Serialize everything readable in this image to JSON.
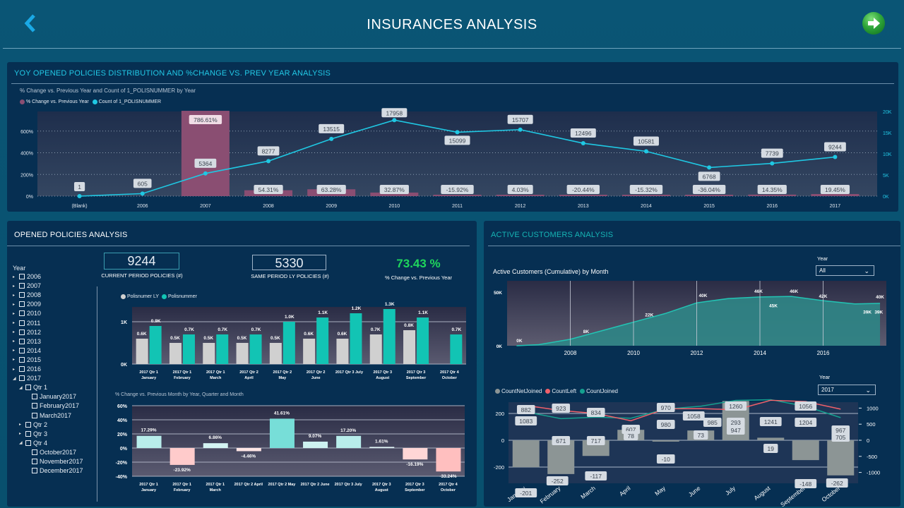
{
  "header": {
    "title": "INSURANCES  ANALYSIS",
    "back_icon": "chevron-left-icon",
    "next_icon": "arrow-right-circle-icon"
  },
  "colors": {
    "accent": "#22c9e6",
    "bar_pct": "#8a4e72",
    "line_count": "#1fc8e3",
    "teal": "#12c4b4",
    "ly_gray": "#d0d0d0",
    "green": "#1fd65c",
    "net_gray": "#8c9595",
    "left_red": "#f0606a",
    "joined_teal": "#14a08f"
  },
  "yoy_panel": {
    "title": "YOY OPENED POLICIES  DISTRIBUTION AND %CHANGE VS. PREV YEAR ANALYSIS",
    "subtitle": "% Change vs. Previous Year and Count of 1_POLISNUMMER by Year",
    "legend": [
      "% Change vs. Previous Year",
      "Count of 1_POLISNUMMER"
    ]
  },
  "opened_panel": {
    "title": "OPENED POLICIES  ANALYSIS",
    "kpi_current": {
      "value": "9244",
      "label": "CURRENT PERIOD POLICIES (#)"
    },
    "kpi_ly": {
      "value": "5330",
      "label": "SAME PERIOD LY POLICIES (#)"
    },
    "kpi_change": {
      "value": "73.43 %",
      "label": "% Change vs. Previous Year"
    },
    "slicer": {
      "title": "Year",
      "items": [
        {
          "label": "2006",
          "level": 0,
          "arrow": "collapsed"
        },
        {
          "label": "2007",
          "level": 0,
          "arrow": "collapsed"
        },
        {
          "label": "2008",
          "level": 0,
          "arrow": "collapsed"
        },
        {
          "label": "2009",
          "level": 0,
          "arrow": "collapsed"
        },
        {
          "label": "2010",
          "level": 0,
          "arrow": "collapsed"
        },
        {
          "label": "2011",
          "level": 0,
          "arrow": "collapsed"
        },
        {
          "label": "2012",
          "level": 0,
          "arrow": "collapsed"
        },
        {
          "label": "2013",
          "level": 0,
          "arrow": "collapsed"
        },
        {
          "label": "2014",
          "level": 0,
          "arrow": "collapsed"
        },
        {
          "label": "2015",
          "level": 0,
          "arrow": "collapsed"
        },
        {
          "label": "2016",
          "level": 0,
          "arrow": "collapsed"
        },
        {
          "label": "2017",
          "level": 0,
          "arrow": "expanded"
        },
        {
          "label": "Qtr 1",
          "level": 1,
          "arrow": "expanded"
        },
        {
          "label": "January2017",
          "level": 2,
          "arrow": "none"
        },
        {
          "label": "February2017",
          "level": 2,
          "arrow": "none"
        },
        {
          "label": "March2017",
          "level": 2,
          "arrow": "none"
        },
        {
          "label": "Qtr 2",
          "level": 1,
          "arrow": "collapsed"
        },
        {
          "label": "Qtr 3",
          "level": 1,
          "arrow": "collapsed"
        },
        {
          "label": "Qtr 4",
          "level": 1,
          "arrow": "expanded"
        },
        {
          "label": "October2017",
          "level": 2,
          "arrow": "none"
        },
        {
          "label": "November2017",
          "level": 2,
          "arrow": "none"
        },
        {
          "label": "December2017",
          "level": 2,
          "arrow": "none"
        }
      ]
    },
    "legend": [
      "Polisnumer LY",
      "Polisnummer"
    ],
    "pct_chart_title": "% Change vs. Previous Month by Year, Quarter and Month"
  },
  "active_panel": {
    "title": "ACTIVE CUSTOMERS ANALYSIS",
    "area_title": "Active Customers (Cumulative) by Month",
    "year_filter_1": {
      "label": "Year",
      "value": "All"
    },
    "year_filter_2": {
      "label": "Year",
      "value": "2017"
    },
    "legend": [
      "CountNetJoined",
      "CountLeft",
      "CountJoined"
    ]
  },
  "chart_data": [
    {
      "id": "yoy",
      "type": "bar+line",
      "title": "% Change vs. Previous Year and Count of 1_POLISNUMMER by Year",
      "categories": [
        "(Blank)",
        "2006",
        "2007",
        "2008",
        "2009",
        "2010",
        "2011",
        "2012",
        "2013",
        "2014",
        "2015",
        "2016",
        "2017"
      ],
      "series": [
        {
          "name": "% Change vs. Previous Year",
          "type": "bar",
          "axis": "left",
          "values": [
            null,
            null,
            786.61,
            54.31,
            63.28,
            32.87,
            -15.92,
            4.03,
            -20.44,
            -15.32,
            -36.04,
            14.35,
            19.45
          ],
          "labels": [
            "",
            "",
            "786.61%",
            "54.31%",
            "63.28%",
            "32.87%",
            "-15.92%",
            "4.03%",
            "-20.44%",
            "-15.32%",
            "-36.04%",
            "14.35%",
            "19.45%"
          ]
        },
        {
          "name": "Count of 1_POLISNUMMER",
          "type": "line",
          "axis": "right",
          "values": [
            1,
            605,
            5364,
            8277,
            13515,
            17958,
            15099,
            15707,
            12496,
            10581,
            6768,
            7739,
            9244
          ]
        }
      ],
      "left_axis": {
        "ticks": [
          "0%",
          "200%",
          "400%",
          "600%"
        ],
        "range": [
          0,
          800
        ]
      },
      "right_axis": {
        "ticks": [
          "0K",
          "5K",
          "10K",
          "15K",
          "20K"
        ],
        "range": [
          0,
          20000
        ]
      },
      "grid": true
    },
    {
      "id": "monthly_policies",
      "type": "bar",
      "categories": [
        "2017 Qtr 1|January",
        "2017 Qtr 1|February",
        "2017 Qtr 1|March",
        "2017 Qtr 2|April",
        "2017 Qtr 2|May",
        "2017 Qtr 2|June",
        "2017 Qtr 3 July",
        "2017 Qtr 3|August",
        "2017 Qtr 3|September",
        "2017 Qtr 4|October"
      ],
      "series": [
        {
          "name": "Polisnumer LY",
          "values": [
            0.6,
            0.5,
            0.5,
            0.5,
            0.5,
            0.6,
            0.6,
            0.7,
            0.8,
            null
          ],
          "labels": [
            "0.6K",
            "0.5K",
            "0.5K",
            "0.5K",
            "0.5K",
            "0.6K",
            "0.6K",
            "0.7K",
            "0.8K",
            ""
          ]
        },
        {
          "name": "Polisnummer",
          "values": [
            0.9,
            0.7,
            0.7,
            0.7,
            1.0,
            1.1,
            1.2,
            1.3,
            1.1,
            0.7
          ],
          "labels": [
            "0.9K",
            "0.7K",
            "0.7K",
            "0.7K",
            "1.0K",
            "1.1K",
            "1.2K",
            "1.3K",
            "1.1K",
            "0.7K"
          ]
        }
      ],
      "y_ticks": [
        "0K",
        "1K"
      ],
      "ylim": [
        0,
        1.35
      ]
    },
    {
      "id": "monthly_pct",
      "type": "bar",
      "title": "% Change vs. Previous Month by Year, Quarter and Month",
      "categories": [
        "2017 Qtr 1|January",
        "2017 Qtr 1|February",
        "2017 Qtr 1|March",
        "2017 Qtr 2 April",
        "2017 Qtr 2 May",
        "2017 Qtr 2 June",
        "2017 Qtr 3 July",
        "2017 Qtr 3|August",
        "2017 Qtr 3|September",
        "2017 Qtr 4|October"
      ],
      "values": [
        17.29,
        -23.92,
        6.86,
        -4.46,
        41.61,
        9.07,
        17.2,
        1.61,
        -16.19,
        -33.24
      ],
      "labels": [
        "17.29%",
        "-23.92%",
        "6.86%",
        "-4.46%",
        "41.61%",
        "9.07%",
        "17.20%",
        "1.61%",
        "-16.19%",
        "-33.24%"
      ],
      "y_ticks": [
        "-40%",
        "-20%",
        "0%",
        "20%",
        "40%",
        "60%"
      ],
      "ylim": [
        -40,
        60
      ]
    },
    {
      "id": "active_cumulative",
      "type": "area",
      "title": "Active Customers (Cumulative) by Month",
      "x": [
        2006.3,
        2007,
        2008,
        2009,
        2010,
        2011,
        2012,
        2012.5,
        2013,
        2014,
        2015,
        2016,
        2017,
        2017.8
      ],
      "values": [
        0,
        1,
        6,
        14,
        22,
        30,
        40,
        42,
        44,
        45.5,
        46,
        42,
        39,
        39.5
      ],
      "point_labels": [
        {
          "x": 2006.3,
          "y": 0,
          "label": "0K"
        },
        {
          "x": 2008.5,
          "y": 8,
          "label": "8K"
        },
        {
          "x": 2010.5,
          "y": 22,
          "label": "22K"
        },
        {
          "x": 2012.2,
          "y": 40,
          "label": "40K"
        },
        {
          "x": 2014,
          "y": 46,
          "label": "46K"
        },
        {
          "x": 2014.2,
          "y": 45,
          "label": "45K"
        },
        {
          "x": 2014.9,
          "y": 46,
          "label": "46K"
        },
        {
          "x": 2016,
          "y": 42,
          "label": "42K"
        },
        {
          "x": 2017.4,
          "y": 39,
          "label": "39K"
        },
        {
          "x": 2017.8,
          "y": 40,
          "label": "40K"
        },
        {
          "x": 2017.85,
          "y": 39,
          "label": "39K"
        }
      ],
      "x_ticks": [
        "2008",
        "2010",
        "2012",
        "2014",
        "2016"
      ],
      "y_ticks": [
        "0K",
        "50K"
      ],
      "ylim": [
        0,
        50
      ],
      "xlim": [
        2006,
        2018
      ]
    },
    {
      "id": "net_joined",
      "type": "bar+line",
      "categories": [
        "January",
        "February",
        "March",
        "April",
        "May",
        "June",
        "July",
        "August",
        "September",
        "October"
      ],
      "series": [
        {
          "name": "CountNetJoined",
          "type": "bar",
          "axis": "left",
          "values": [
            -201,
            -252,
            -117,
            78,
            -10,
            73,
            293,
            19,
            -148,
            -262
          ]
        },
        {
          "name": "CountLeft",
          "type": "line",
          "axis": "right",
          "values": [
            1083,
            923,
            834,
            607,
            980,
            985,
            947,
            1241,
            1204,
            967
          ]
        },
        {
          "name": "CountJoined",
          "type": "line",
          "axis": "right",
          "values": [
            882,
            671,
            717,
            685,
            970,
            1058,
            1240,
            1260,
            1056,
            705
          ]
        }
      ],
      "data_labels": [
        [
          "882",
          "1083",
          "-201"
        ],
        [
          "923",
          "671",
          "-252"
        ],
        [
          "834",
          "717",
          "-117"
        ],
        [
          "607",
          "78"
        ],
        [
          "970",
          "980",
          "-10"
        ],
        [
          "1058",
          "73"
        ],
        [
          "985",
          "1260",
          "293",
          "947"
        ],
        [
          "1241",
          "19"
        ],
        [
          "1056",
          "1204",
          "-148"
        ],
        [
          "967",
          "705",
          "-262"
        ]
      ],
      "left_axis": {
        "ticks": [
          "-200",
          "0",
          "200"
        ],
        "range": [
          -300,
          300
        ]
      },
      "right_axis": {
        "ticks": [
          "-1000",
          "-500",
          "0",
          "500",
          "1000"
        ],
        "range": [
          -1250,
          1250
        ]
      }
    }
  ]
}
